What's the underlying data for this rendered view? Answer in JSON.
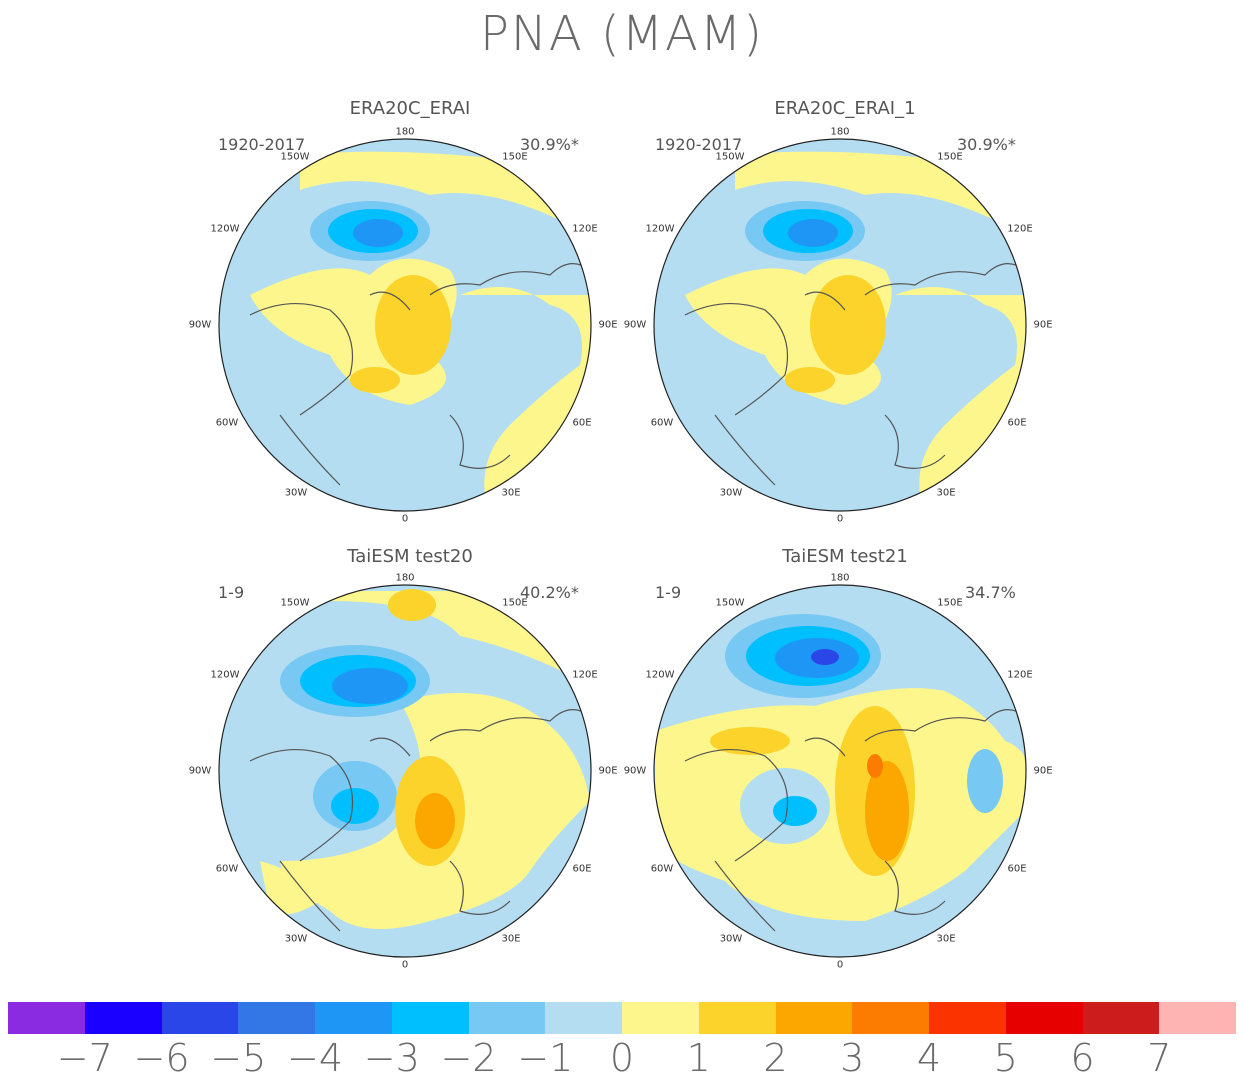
{
  "title": "PNA (MAM)",
  "panels": [
    {
      "title": "ERA20C_ERAI",
      "period": "1920-2017",
      "variance": "30.9%*"
    },
    {
      "title": "ERA20C_ERAI_1",
      "period": "1920-2017",
      "variance": "30.9%*"
    },
    {
      "title": "TaiESM test20",
      "period": "1-9",
      "variance": "40.2%*"
    },
    {
      "title": "TaiESM test21",
      "period": "1-9",
      "variance": "34.7%"
    }
  ],
  "longitude_labels": {
    "l180": "180",
    "l150w": "150W",
    "l150e": "150E",
    "l120w": "120W",
    "l120e": "120E",
    "l90w": "90W",
    "l90e": "90E",
    "l60w": "60W",
    "l60e": "60E",
    "l30w": "30W",
    "l30e": "30E",
    "l0": "0"
  },
  "colorbar": {
    "colors": [
      "#8a2be2",
      "#1a00ff",
      "#2a45e8",
      "#3377e6",
      "#1e96f5",
      "#00bfff",
      "#77c8f2",
      "#b4ddf2",
      "#fdf68c",
      "#fcd32a",
      "#fba700",
      "#fb7c00",
      "#fb3300",
      "#e60000",
      "#cc1c1c",
      "#ffb4b4"
    ],
    "labels": [
      "-7",
      "-6",
      "-5",
      "-4",
      "-3",
      "-2",
      "-1",
      "0",
      "1",
      "2",
      "3",
      "4",
      "5",
      "6",
      "7"
    ]
  }
}
